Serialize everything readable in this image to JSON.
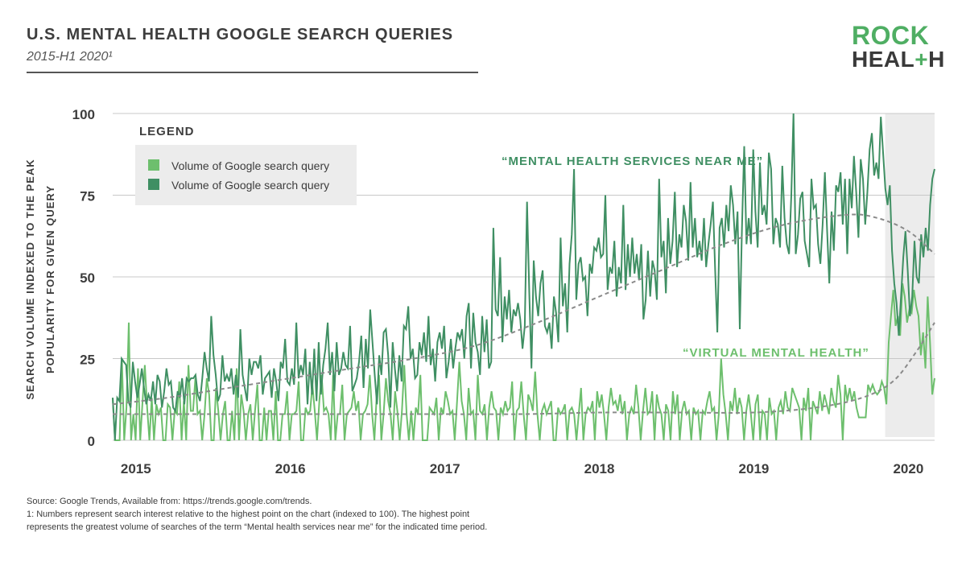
{
  "header": {
    "title": "U.S. MENTAL HEALTH GOOGLE SEARCH QUERIES",
    "subtitle": "2015-H1 2020¹"
  },
  "logo": {
    "line1": "ROCK",
    "line2_a": "HEAL",
    "line2_plus": "+",
    "line2_b": "H"
  },
  "footer": {
    "source": "Source: Google Trends, Available from: https://trends.google.com/trends.",
    "note_line1": "1: Numbers represent search interest relative to the highest point on the chart (indexed to 100). The highest point",
    "note_line2": "represents the greatest volume of searches of the term “Mental health services near me” for the indicated time period."
  },
  "colors": {
    "light_green": "#6dbf6d",
    "dark_green": "#3f8f63",
    "trend": "#8a8a8a",
    "shade": "#ececec"
  },
  "chart_data": {
    "type": "line",
    "ylabel_line1": "SEARCH VOLUME INDEXED TO THE PEAK",
    "ylabel_line2": "POPULARITY FOR GIVEN QUERY",
    "ylim": [
      0,
      100
    ],
    "yticks": [
      "0",
      "25",
      "50",
      "75",
      "100"
    ],
    "xticks": [
      "2015",
      "2016",
      "2017",
      "2018",
      "2019",
      "2020"
    ],
    "legend": {
      "title": "LEGEND",
      "entries": [
        "Volume of Google search query",
        "Volume of Google search query"
      ]
    },
    "annotations": {
      "dark": "“MENTAL HEALTH SERVICES NEAR ME”",
      "light": "“VIRTUAL MENTAL HEALTH”"
    },
    "shaded_region": {
      "x_start": 2019.85,
      "x_end": 2020.17
    },
    "x_start": 2014.85,
    "x_end": 2020.17,
    "series": [
      {
        "key": "mental_health_services",
        "values": [
          13,
          0,
          13,
          12,
          25,
          24,
          23,
          12,
          10,
          24,
          18,
          13,
          17,
          22,
          16,
          11,
          14,
          12,
          18,
          11,
          20,
          18,
          10,
          15,
          22,
          17,
          18,
          10,
          9,
          15,
          13,
          19,
          11,
          19,
          18,
          19,
          19,
          20,
          14,
          12,
          19,
          27,
          22,
          18,
          38,
          26,
          20,
          12,
          14,
          26,
          18,
          20,
          18,
          22,
          14,
          20,
          13,
          34,
          20,
          16,
          12,
          25,
          20,
          24,
          24,
          22,
          26,
          14,
          19,
          20,
          21,
          13,
          22,
          18,
          12,
          24,
          22,
          31,
          18,
          17,
          22,
          17,
          36,
          19,
          23,
          20,
          28,
          11,
          24,
          14,
          28,
          12,
          30,
          14,
          23,
          28,
          36,
          20,
          27,
          15,
          30,
          20,
          22,
          27,
          23,
          22,
          35,
          15,
          17,
          19,
          24,
          32,
          16,
          31,
          22,
          40,
          30,
          20,
          11,
          26,
          20,
          33,
          34,
          26,
          10,
          30,
          22,
          15,
          26,
          18,
          35,
          34,
          41,
          25,
          28,
          19,
          20,
          30,
          26,
          33,
          24,
          38,
          23,
          28,
          18,
          30,
          33,
          28,
          35,
          19,
          24,
          31,
          22,
          28,
          33,
          31,
          34,
          25,
          38,
          42,
          22,
          39,
          30,
          27,
          20,
          38,
          27,
          37,
          22,
          24,
          65,
          40,
          38,
          56,
          30,
          44,
          37,
          46,
          33,
          40,
          38,
          42,
          37,
          28,
          35,
          73,
          45,
          22,
          55,
          44,
          38,
          48,
          52,
          35,
          33,
          36,
          28,
          44,
          39,
          30,
          62,
          41,
          48,
          33,
          54,
          63,
          83,
          43,
          54,
          56,
          49,
          50,
          38,
          54,
          51,
          59,
          58,
          62,
          56,
          57,
          75,
          46,
          53,
          51,
          61,
          44,
          53,
          48,
          72,
          46,
          60,
          50,
          62,
          51,
          57,
          49,
          60,
          37,
          43,
          58,
          44,
          55,
          52,
          43,
          80,
          56,
          61,
          45,
          68,
          54,
          61,
          76,
          53,
          63,
          59,
          72,
          67,
          55,
          79,
          59,
          68,
          56,
          61,
          55,
          68,
          53,
          60,
          66,
          73,
          52,
          33,
          65,
          68,
          59,
          72,
          64,
          78,
          72,
          60,
          70,
          34,
          65,
          90,
          60,
          68,
          60,
          89,
          70,
          59,
          85,
          69,
          72,
          66,
          88,
          83,
          60,
          68,
          66,
          59,
          84,
          68,
          60,
          57,
          75,
          100,
          57,
          63,
          74,
          76,
          61,
          57,
          53,
          80,
          71,
          72,
          60,
          54,
          66,
          82,
          64,
          48,
          70,
          58,
          78,
          76,
          82,
          66,
          80,
          57,
          80,
          71,
          87,
          76,
          62,
          86,
          80,
          66,
          76,
          89,
          94,
          81,
          85,
          80,
          99,
          88,
          77,
          72,
          78,
          58,
          48,
          42,
          32,
          44,
          56,
          64,
          52,
          38,
          44,
          61,
          50,
          48,
          63,
          56,
          65,
          58,
          72,
          80,
          83
        ]
      },
      {
        "key": "virtual_mental_health",
        "values": [
          13,
          0,
          0,
          0,
          25,
          0,
          10,
          36,
          0,
          8,
          0,
          22,
          0,
          12,
          23,
          10,
          0,
          13,
          0,
          11,
          8,
          10,
          0,
          0,
          11,
          10,
          0,
          9,
          8,
          18,
          0,
          12,
          0,
          23,
          9,
          9,
          19,
          8,
          9,
          0,
          8,
          19,
          14,
          0,
          0,
          16,
          9,
          0,
          8,
          12,
          0,
          0,
          9,
          0,
          22,
          0,
          14,
          9,
          0,
          8,
          11,
          0,
          9,
          17,
          0,
          0,
          10,
          0,
          9,
          9,
          0,
          15,
          0,
          0,
          8,
          8,
          15,
          0,
          8,
          8,
          9,
          18,
          0,
          0,
          10,
          8,
          9,
          17,
          9,
          0,
          12,
          20,
          9,
          10,
          8,
          0,
          20,
          0,
          8,
          8,
          17,
          0,
          8,
          9,
          10,
          15,
          9,
          12,
          0,
          8,
          9,
          11,
          20,
          8,
          0,
          14,
          20,
          0,
          8,
          19,
          12,
          8,
          0,
          15,
          9,
          0,
          9,
          23,
          8,
          0,
          9,
          0,
          10,
          8,
          20,
          0,
          0,
          0,
          10,
          9,
          8,
          13,
          0,
          10,
          8,
          15,
          12,
          8,
          9,
          0,
          12,
          24,
          12,
          8,
          0,
          16,
          8,
          9,
          0,
          20,
          9,
          8,
          11,
          0,
          10,
          15,
          10,
          9,
          0,
          10,
          8,
          12,
          9,
          10,
          18,
          0,
          9,
          10,
          18,
          8,
          0,
          14,
          12,
          9,
          21,
          8,
          0,
          9,
          11,
          8,
          10,
          12,
          0,
          0,
          10,
          8,
          9,
          11,
          0,
          9,
          10,
          8,
          0,
          8,
          16,
          0,
          8,
          10,
          9,
          12,
          0,
          15,
          10,
          14,
          8,
          0,
          10,
          16,
          11,
          12,
          9,
          14,
          8,
          12,
          0,
          8,
          10,
          8,
          17,
          10,
          0,
          9,
          16,
          8,
          9,
          15,
          0,
          14,
          10,
          8,
          0,
          11,
          9,
          0,
          15,
          8,
          14,
          0,
          9,
          12,
          8,
          9,
          0,
          10,
          8,
          9,
          0,
          9,
          8,
          12,
          15,
          9,
          10,
          0,
          8,
          25,
          14,
          8,
          0,
          12,
          9,
          16,
          8,
          13,
          10,
          0,
          9,
          14,
          8,
          0,
          11,
          14,
          0,
          9,
          8,
          0,
          13,
          8,
          9,
          0,
          10,
          12,
          8,
          15,
          10,
          9,
          16,
          14,
          12,
          10,
          0,
          13,
          9,
          16,
          0,
          12,
          10,
          8,
          15,
          9,
          14,
          11,
          8,
          16,
          12,
          10,
          20,
          14,
          0,
          17,
          12,
          16,
          12,
          15,
          10,
          7,
          7,
          7,
          7,
          17,
          15,
          17,
          15,
          14,
          15,
          18,
          16,
          11,
          30,
          38,
          46,
          35,
          38,
          32,
          48,
          44,
          36,
          40,
          39,
          46,
          41,
          38,
          26,
          33,
          22,
          44,
          30,
          14,
          19
        ]
      },
      {
        "key": "trend_dark",
        "x": [
          2014.85,
          2015.2,
          2015.6,
          2016.0,
          2016.4,
          2016.8,
          2017.2,
          2017.6,
          2018.0,
          2018.4,
          2018.8,
          2019.2,
          2019.6,
          2019.8,
          2020.0,
          2020.17
        ],
        "values": [
          11,
          13,
          16,
          19,
          22,
          25,
          29,
          36,
          44,
          52,
          60,
          66,
          69,
          68,
          64,
          57
        ]
      },
      {
        "key": "trend_light",
        "x": [
          2014.85,
          2015.5,
          2016.2,
          2016.9,
          2017.5,
          2018.0,
          2018.5,
          2019.0,
          2019.4,
          2019.7,
          2019.9,
          2020.05,
          2020.17
        ],
        "values": [
          8,
          8,
          8,
          8,
          8,
          8.5,
          8.5,
          8.5,
          10,
          13,
          18,
          27,
          36
        ]
      }
    ]
  }
}
